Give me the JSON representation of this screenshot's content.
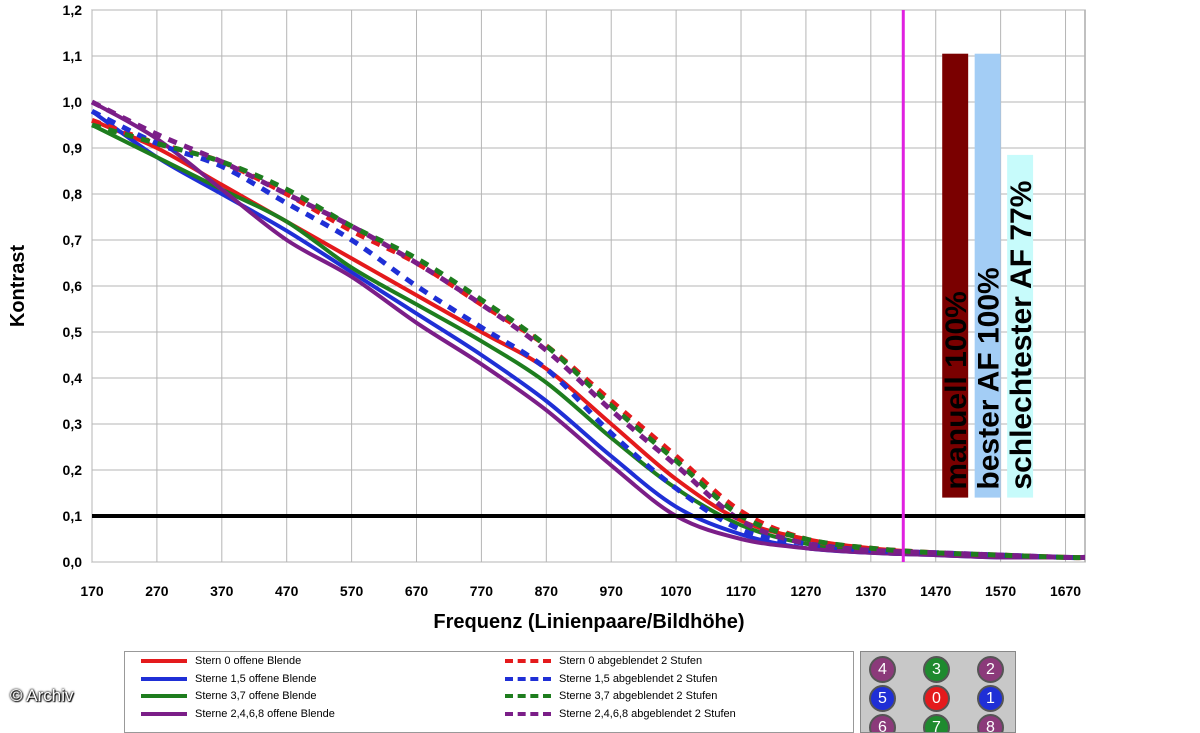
{
  "chart_data": {
    "type": "line",
    "xlabel": "Frequenz (Linienpaare/Bildhöhe)",
    "ylabel": "Kontrast",
    "xlim": [
      170,
      1700
    ],
    "ylim": [
      0,
      1.2
    ],
    "x_ticks": [
      "170",
      "270",
      "370",
      "470",
      "570",
      "670",
      "770",
      "870",
      "970",
      "1070",
      "1170",
      "1270",
      "1370",
      "1470",
      "1570",
      "1670"
    ],
    "y_ticks": [
      "0,0",
      "0,1",
      "0,2",
      "0,3",
      "0,4",
      "0,5",
      "0,6",
      "0,7",
      "0,8",
      "0,9",
      "1,0",
      "1,1",
      "1,2"
    ],
    "grid": true,
    "x": [
      170,
      270,
      370,
      470,
      570,
      670,
      770,
      870,
      970,
      1070,
      1170,
      1270,
      1370,
      1470,
      1570,
      1670,
      1700
    ],
    "series": [
      {
        "name": "Stern 0 offene Blende",
        "color": "#e41a1c",
        "style": "solid",
        "values": [
          0.96,
          0.9,
          0.82,
          0.74,
          0.66,
          0.58,
          0.5,
          0.42,
          0.3,
          0.18,
          0.09,
          0.05,
          0.03,
          0.02,
          0.015,
          0.01,
          0.01
        ]
      },
      {
        "name": "Sterne 1,5 offene Blende",
        "color": "#1f2fd6",
        "style": "solid",
        "values": [
          0.98,
          0.88,
          0.8,
          0.72,
          0.63,
          0.54,
          0.45,
          0.35,
          0.23,
          0.12,
          0.06,
          0.03,
          0.02,
          0.015,
          0.01,
          0.01,
          0.01
        ]
      },
      {
        "name": "Sterne 3,7 offene Blende",
        "color": "#1e7d1e",
        "style": "solid",
        "values": [
          0.95,
          0.88,
          0.81,
          0.74,
          0.64,
          0.56,
          0.48,
          0.39,
          0.27,
          0.16,
          0.08,
          0.04,
          0.025,
          0.02,
          0.015,
          0.01,
          0.01
        ]
      },
      {
        "name": "Sterne 2,4,6,8 offene Blende",
        "color": "#7b1e88",
        "style": "solid",
        "values": [
          1.0,
          0.92,
          0.81,
          0.7,
          0.62,
          0.52,
          0.43,
          0.33,
          0.21,
          0.1,
          0.05,
          0.03,
          0.02,
          0.015,
          0.01,
          0.01,
          0.01
        ]
      },
      {
        "name": "Stern 0 abgeblendet 2 Stufen",
        "color": "#e41a1c",
        "style": "dashed",
        "values": [
          0.96,
          0.91,
          0.87,
          0.8,
          0.72,
          0.65,
          0.56,
          0.47,
          0.35,
          0.23,
          0.11,
          0.05,
          0.03,
          0.02,
          0.015,
          0.01,
          0.01
        ]
      },
      {
        "name": "Sterne 1,5 abgeblendet 2 Stufen",
        "color": "#1f2fd6",
        "style": "dashed",
        "values": [
          0.98,
          0.91,
          0.86,
          0.78,
          0.7,
          0.6,
          0.51,
          0.42,
          0.28,
          0.16,
          0.07,
          0.04,
          0.025,
          0.02,
          0.015,
          0.01,
          0.01
        ]
      },
      {
        "name": "Sterne 3,7 abgeblendet 2 Stufen",
        "color": "#1e7d1e",
        "style": "dashed",
        "values": [
          0.95,
          0.91,
          0.87,
          0.81,
          0.73,
          0.66,
          0.57,
          0.47,
          0.34,
          0.22,
          0.1,
          0.05,
          0.03,
          0.02,
          0.015,
          0.01,
          0.01
        ]
      },
      {
        "name": "Sterne 2,4,6,8 abgeblendet 2 Stufen",
        "color": "#7b1e88",
        "style": "dashed",
        "values": [
          1.0,
          0.93,
          0.87,
          0.8,
          0.73,
          0.65,
          0.56,
          0.46,
          0.33,
          0.21,
          0.09,
          0.04,
          0.025,
          0.02,
          0.015,
          0.01,
          0.01
        ]
      }
    ],
    "reference_line": {
      "y": 0.1,
      "color": "#000000"
    },
    "marker_line": {
      "x": 1420,
      "color": "#e020e0"
    },
    "bars": [
      {
        "label": "manuell 100%",
        "value": 1.105,
        "x_from": 1480,
        "x_to": 1520,
        "color": "#7a0000"
      },
      {
        "label": "bester AF 100%",
        "value": 1.105,
        "x_from": 1530,
        "x_to": 1570,
        "color": "#a3cdf5"
      },
      {
        "label": "schlechtester AF 77%",
        "value": 0.885,
        "x_from": 1580,
        "x_to": 1620,
        "color": "#c7fbfb"
      }
    ]
  },
  "legend": {
    "items": [
      {
        "label": "Stern 0 offene Blende",
        "color": "#e41a1c",
        "style": "solid"
      },
      {
        "label": "Sterne 1,5 offene Blende",
        "color": "#1f2fd6",
        "style": "solid"
      },
      {
        "label": "Sterne 3,7 offene Blende",
        "color": "#1e7d1e",
        "style": "solid"
      },
      {
        "label": "Sterne 2,4,6,8 offene Blende",
        "color": "#7b1e88",
        "style": "solid"
      },
      {
        "label": "Stern 0 abgeblendet 2 Stufen",
        "color": "#e41a1c",
        "style": "dashed"
      },
      {
        "label": "Sterne 1,5 abgeblendet 2 Stufen",
        "color": "#1f2fd6",
        "style": "dashed"
      },
      {
        "label": "Sterne 3,7 abgeblendet 2 Stufen",
        "color": "#1e7d1e",
        "style": "dashed"
      },
      {
        "label": "Sterne 2,4,6,8 abgeblendet 2 Stufen",
        "color": "#7b1e88",
        "style": "dashed"
      }
    ]
  },
  "stars": [
    {
      "label": "4",
      "color": "#8b3a7a"
    },
    {
      "label": "3",
      "color": "#1e8a2e"
    },
    {
      "label": "2",
      "color": "#8b3a7a"
    },
    {
      "label": "5",
      "color": "#1f2fd6"
    },
    {
      "label": "0",
      "color": "#e41a1c"
    },
    {
      "label": "1",
      "color": "#1f2fd6"
    },
    {
      "label": "6",
      "color": "#8b3a7a"
    },
    {
      "label": "7",
      "color": "#1e8a2e"
    },
    {
      "label": "8",
      "color": "#8b3a7a"
    }
  ],
  "credit": "© Archiv"
}
